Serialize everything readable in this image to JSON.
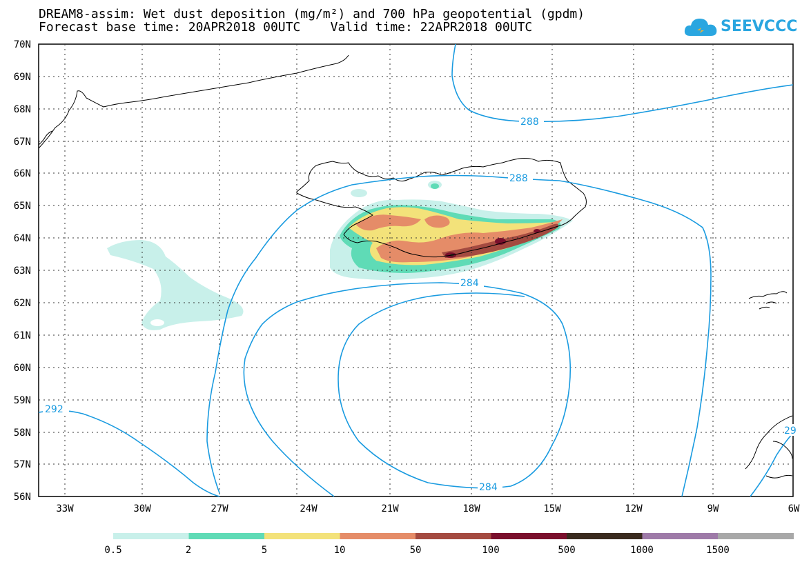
{
  "title_line1": "DREAM8-assim: Wet dust deposition (mg/m²) and 700 hPa geopotential (gpdm)",
  "title_line2": "Forecast base time: 20APR2018 00UTC    Valid time: 22APR2018 00UTC",
  "logo_text": "SEEVCCC",
  "map": {
    "lon_labels": [
      "33W",
      "30W",
      "27W",
      "24W",
      "21W",
      "18W",
      "15W",
      "12W",
      "9W",
      "6W"
    ],
    "lat_labels": [
      "70N",
      "69N",
      "68N",
      "67N",
      "66N",
      "65N",
      "64N",
      "63N",
      "62N",
      "61N",
      "60N",
      "59N",
      "58N",
      "57N",
      "56N"
    ],
    "contour_labels": [
      "288",
      "288",
      "284",
      "284",
      "292",
      "29"
    ],
    "contour_color": "#1a9be0"
  },
  "legend": {
    "labels": [
      "0.5",
      "2",
      "5",
      "10",
      "50",
      "100",
      "500",
      "1000",
      "1500"
    ],
    "colors": [
      "#c8f0ea",
      "#5fdbb6",
      "#f3e27a",
      "#e58c68",
      "#a44a40",
      "#7a0f2c",
      "#3a2a1e",
      "#9e7aa8",
      "#a8a8a8"
    ]
  }
}
